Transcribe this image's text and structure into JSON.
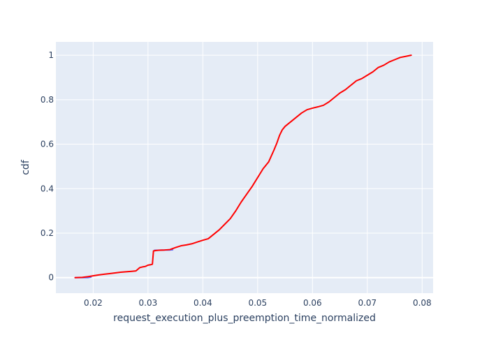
{
  "chart_data": {
    "type": "line",
    "title": "",
    "xlabel": "request_execution_plus_preemption_time_normalized",
    "ylabel": "cdf",
    "xlim": [
      0.0132,
      0.082
    ],
    "ylim": [
      -0.07,
      1.06
    ],
    "x_ticks": [
      0.02,
      0.03,
      0.04,
      0.05,
      0.06,
      0.07,
      0.08
    ],
    "x_tick_labels": [
      "0.02",
      "0.03",
      "0.04",
      "0.05",
      "0.06",
      "0.07",
      "0.08"
    ],
    "y_ticks": [
      0,
      0.2,
      0.4,
      0.6,
      0.8,
      1
    ],
    "y_tick_labels": [
      "0",
      "0.2",
      "0.4",
      "0.6",
      "0.8",
      "1"
    ],
    "grid": true,
    "legend": "none",
    "colors": {
      "plot_bg": "#e5ecf6",
      "grid": "#ffffff",
      "text": "#2a3f5f",
      "line": "#ff0000",
      "line_secondary": "#636efa"
    },
    "series": [
      {
        "color": "#636efa",
        "x": [
          0.0167,
          0.0172,
          0.0178,
          0.0184,
          0.019,
          0.0196
        ],
        "y": [
          0.0,
          0.0,
          0.0,
          0.0,
          0.0,
          0.002
        ]
      },
      {
        "color": "#636efa",
        "x": [
          0.0312,
          0.0318,
          0.0325,
          0.0332,
          0.0339,
          0.0345
        ],
        "y": [
          0.123,
          0.123,
          0.124,
          0.124,
          0.124,
          0.125
        ]
      },
      {
        "color": "#ff0000",
        "x": [
          0.0167,
          0.018,
          0.019,
          0.02,
          0.021,
          0.022,
          0.023,
          0.024,
          0.025,
          0.026,
          0.027,
          0.0278,
          0.0285,
          0.029,
          0.0295,
          0.03,
          0.0305,
          0.0308,
          0.0309,
          0.031,
          0.0315,
          0.032,
          0.033,
          0.034,
          0.035,
          0.036,
          0.037,
          0.038,
          0.039,
          0.04,
          0.041,
          0.042,
          0.043,
          0.044,
          0.045,
          0.046,
          0.047,
          0.048,
          0.049,
          0.05,
          0.051,
          0.052,
          0.053,
          0.0535,
          0.054,
          0.0545,
          0.055,
          0.056,
          0.057,
          0.058,
          0.059,
          0.06,
          0.061,
          0.062,
          0.063,
          0.064,
          0.065,
          0.066,
          0.067,
          0.068,
          0.069,
          0.07,
          0.071,
          0.072,
          0.073,
          0.074,
          0.075,
          0.076,
          0.077,
          0.078
        ],
        "y": [
          0.0,
          0.001,
          0.004,
          0.008,
          0.012,
          0.015,
          0.018,
          0.021,
          0.024,
          0.026,
          0.028,
          0.03,
          0.045,
          0.048,
          0.05,
          0.056,
          0.058,
          0.06,
          0.09,
          0.12,
          0.122,
          0.123,
          0.124,
          0.126,
          0.135,
          0.143,
          0.147,
          0.152,
          0.16,
          0.168,
          0.175,
          0.195,
          0.215,
          0.24,
          0.265,
          0.3,
          0.34,
          0.375,
          0.41,
          0.45,
          0.49,
          0.52,
          0.575,
          0.605,
          0.64,
          0.665,
          0.68,
          0.7,
          0.72,
          0.74,
          0.755,
          0.762,
          0.768,
          0.775,
          0.79,
          0.81,
          0.83,
          0.845,
          0.865,
          0.885,
          0.895,
          0.91,
          0.925,
          0.945,
          0.955,
          0.97,
          0.98,
          0.99,
          0.995,
          1.0
        ]
      }
    ]
  }
}
